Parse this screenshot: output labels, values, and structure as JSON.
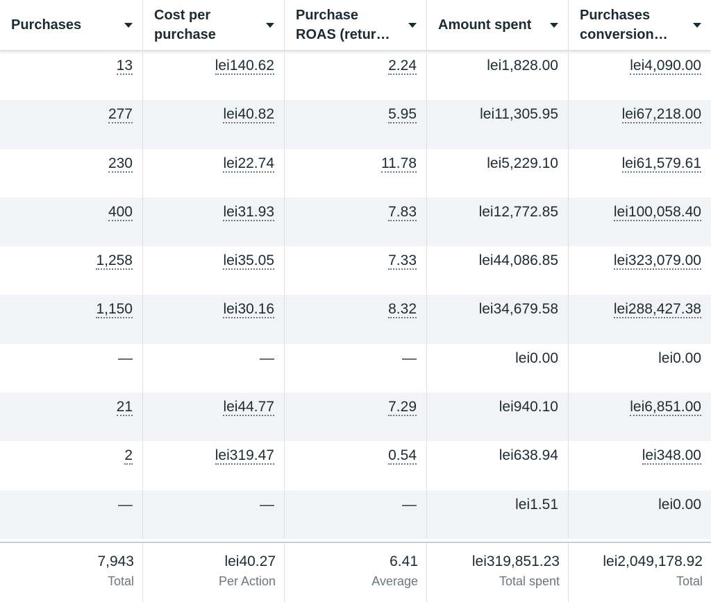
{
  "columns": [
    {
      "line1": "Purchases",
      "line2": ""
    },
    {
      "line1": "Cost per",
      "line2": "purchase"
    },
    {
      "line1": "Purchase",
      "line2": "ROAS (retur…"
    },
    {
      "line1": "Amount spent",
      "line2": ""
    },
    {
      "line1": "Purchases",
      "line2": "conversion…"
    }
  ],
  "rows": [
    {
      "purchases": "13",
      "cost": "lei140.62",
      "roas": "2.24",
      "spent": "lei1,828.00",
      "conv": "lei4,090.00",
      "link": [
        true,
        true,
        true,
        false,
        true
      ]
    },
    {
      "purchases": "277",
      "cost": "lei40.82",
      "roas": "5.95",
      "spent": "lei11,305.95",
      "conv": "lei67,218.00",
      "link": [
        true,
        true,
        true,
        false,
        true
      ]
    },
    {
      "purchases": "230",
      "cost": "lei22.74",
      "roas": "11.78",
      "spent": "lei5,229.10",
      "conv": "lei61,579.61",
      "link": [
        true,
        true,
        true,
        false,
        true
      ]
    },
    {
      "purchases": "400",
      "cost": "lei31.93",
      "roas": "7.83",
      "spent": "lei12,772.85",
      "conv": "lei100,058.40",
      "link": [
        true,
        true,
        true,
        false,
        true
      ]
    },
    {
      "purchases": "1,258",
      "cost": "lei35.05",
      "roas": "7.33",
      "spent": "lei44,086.85",
      "conv": "lei323,079.00",
      "link": [
        true,
        true,
        true,
        false,
        true
      ]
    },
    {
      "purchases": "1,150",
      "cost": "lei30.16",
      "roas": "8.32",
      "spent": "lei34,679.58",
      "conv": "lei288,427.38",
      "link": [
        true,
        true,
        true,
        false,
        true
      ]
    },
    {
      "purchases": "—",
      "cost": "—",
      "roas": "—",
      "spent": "lei0.00",
      "conv": "lei0.00",
      "link": [
        false,
        false,
        false,
        false,
        false
      ]
    },
    {
      "purchases": "21",
      "cost": "lei44.77",
      "roas": "7.29",
      "spent": "lei940.10",
      "conv": "lei6,851.00",
      "link": [
        true,
        true,
        true,
        false,
        true
      ]
    },
    {
      "purchases": "2",
      "cost": "lei319.47",
      "roas": "0.54",
      "spent": "lei638.94",
      "conv": "lei348.00",
      "link": [
        true,
        true,
        true,
        false,
        true
      ]
    },
    {
      "purchases": "—",
      "cost": "—",
      "roas": "—",
      "spent": "lei1.51",
      "conv": "lei0.00",
      "link": [
        false,
        false,
        false,
        false,
        false
      ]
    }
  ],
  "totals": [
    {
      "value": "7,943",
      "label": "Total"
    },
    {
      "value": "lei40.27",
      "label": "Per Action"
    },
    {
      "value": "6.41",
      "label": "Average"
    },
    {
      "value": "lei319,851.23",
      "label": "Total spent"
    },
    {
      "value": "lei2,049,178.92",
      "label": "Total"
    }
  ],
  "colors": {
    "text": "#1c2b33",
    "muted": "#6b7780",
    "row_alt": "#f2f3f6",
    "border": "#dde1e6"
  },
  "icons": {
    "sort": "caret-down-icon"
  }
}
